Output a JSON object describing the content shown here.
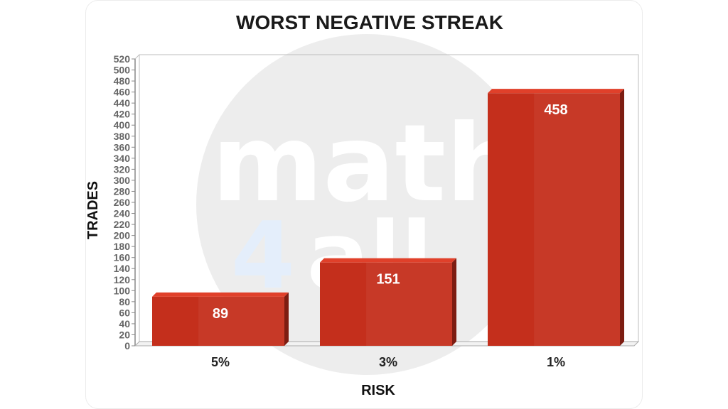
{
  "watermark": {
    "line1": "math",
    "line2a": "4",
    "line2b": "all"
  },
  "colors": {
    "bar_front": "#c42f1c",
    "bar_side": "#7d1d12",
    "bar_top": "#e0402a",
    "watermark_circle": "#ededed"
  },
  "chart_data": {
    "type": "bar",
    "title": "WORST NEGATIVE STREAK",
    "xlabel": "RISK",
    "ylabel": "TRADES",
    "categories": [
      "5%",
      "3%",
      "1%"
    ],
    "values": [
      89,
      151,
      458
    ],
    "data_labels": [
      "89",
      "151",
      "458"
    ],
    "ylim": [
      0,
      520
    ],
    "ytick_step": 20,
    "grid": false,
    "legend": "none",
    "style": "3d"
  }
}
